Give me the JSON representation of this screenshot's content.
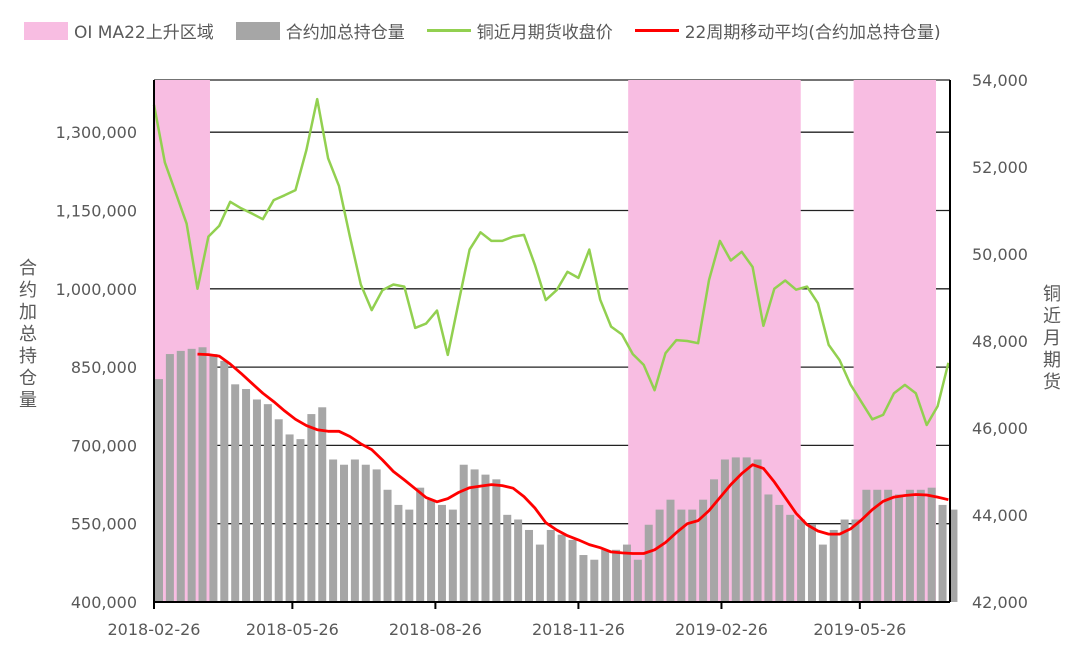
{
  "chart_data": {
    "type": "bar+line",
    "legend": [
      {
        "label": "OI MA22上升区域",
        "kind": "area",
        "color": "#f8bde2"
      },
      {
        "label": "合约加总持仓量",
        "kind": "bar",
        "color": "#a6a6a6"
      },
      {
        "label": "铜近月期货收盘价",
        "kind": "line",
        "color": "#92d050"
      },
      {
        "label": "22周期移动平均(合约加总持仓量)",
        "kind": "line",
        "color": "#ff0000"
      }
    ],
    "legend_position": "top",
    "y_left": {
      "label": "合约加总持仓量",
      "range": [
        400000,
        1400000
      ],
      "ticks": [
        "400,000",
        "550,000",
        "700,000",
        "850,000",
        "1,000,000",
        "1,150,000",
        "1,300,000"
      ],
      "tick_values": [
        400000,
        550000,
        700000,
        850000,
        1000000,
        1150000,
        1300000
      ]
    },
    "y_right": {
      "label": "铜近月期货",
      "range": [
        42000,
        54000
      ],
      "ticks": [
        "42,000",
        "44,000",
        "46,000",
        "48,000",
        "50,000",
        "52,000",
        "54,000"
      ],
      "tick_values": [
        42000,
        44000,
        46000,
        48000,
        50000,
        52000,
        54000
      ]
    },
    "x_axis": {
      "range": [
        "2018-02-26",
        "2019-07-23"
      ],
      "ticks": [
        "2018-02-26",
        "2018-05-26",
        "2018-08-26",
        "2018-11-26",
        "2019-02-26",
        "2019-05-26"
      ]
    },
    "grid": "horizontal",
    "shaded_regions": [
      [
        "2018-02-26",
        "2018-04-03"
      ],
      [
        "2018-12-28",
        "2019-04-18"
      ],
      [
        "2019-05-22",
        "2019-07-14"
      ]
    ],
    "dates": [
      "2018-02-26",
      "2018-03-05",
      "2018-03-12",
      "2018-03-19",
      "2018-03-26",
      "2018-04-02",
      "2018-04-09",
      "2018-04-16",
      "2018-04-23",
      "2018-04-30",
      "2018-05-07",
      "2018-05-14",
      "2018-05-21",
      "2018-05-28",
      "2018-06-04",
      "2018-06-11",
      "2018-06-18",
      "2018-06-25",
      "2018-07-02",
      "2018-07-09",
      "2018-07-16",
      "2018-07-23",
      "2018-07-30",
      "2018-08-06",
      "2018-08-13",
      "2018-08-20",
      "2018-08-27",
      "2018-09-03",
      "2018-09-10",
      "2018-09-17",
      "2018-09-24",
      "2018-10-01",
      "2018-10-08",
      "2018-10-15",
      "2018-10-22",
      "2018-10-29",
      "2018-11-05",
      "2018-11-12",
      "2018-11-19",
      "2018-11-26",
      "2018-12-03",
      "2018-12-10",
      "2018-12-17",
      "2018-12-24",
      "2018-12-31",
      "2019-01-07",
      "2019-01-14",
      "2019-01-21",
      "2019-01-28",
      "2019-02-04",
      "2019-02-11",
      "2019-02-18",
      "2019-02-25",
      "2019-03-04",
      "2019-03-11",
      "2019-03-18",
      "2019-03-25",
      "2019-04-01",
      "2019-04-08",
      "2019-04-15",
      "2019-04-22",
      "2019-04-29",
      "2019-05-06",
      "2019-05-13",
      "2019-05-20",
      "2019-05-27",
      "2019-06-03",
      "2019-06-10",
      "2019-06-17",
      "2019-06-24",
      "2019-07-01",
      "2019-07-08",
      "2019-07-15",
      "2019-07-22"
    ],
    "series": [
      {
        "name": "合约加总持仓量",
        "axis": "left",
        "type": "bar",
        "values": [
          827000,
          875000,
          881000,
          885000,
          888000,
          875000,
          862000,
          817000,
          808000,
          788000,
          779000,
          750000,
          721000,
          712000,
          760000,
          773000,
          673000,
          663000,
          673000,
          663000,
          654000,
          615000,
          586000,
          577000,
          619000,
          596000,
          586000,
          577000,
          663000,
          654000,
          644000,
          635000,
          567000,
          558000,
          538000,
          510000,
          538000,
          529000,
          519000,
          490000,
          481000,
          500000,
          500000,
          510000,
          481000,
          548000,
          577000,
          596000,
          577000,
          577000,
          596000,
          635000,
          673000,
          677000,
          677000,
          673000,
          606000,
          586000,
          567000,
          558000,
          548000,
          510000,
          538000,
          558000,
          558000,
          615000,
          615000,
          615000,
          606000,
          615000,
          615000,
          619000,
          586000,
          577000
        ]
      },
      {
        "name": "铜近月期货收盘价",
        "axis": "right",
        "type": "line",
        "values": [
          53430,
          52100,
          51400,
          50700,
          49200,
          50400,
          50650,
          51200,
          51050,
          50930,
          50800,
          51240,
          51350,
          51470,
          52390,
          53560,
          52200,
          51560,
          50400,
          49300,
          48710,
          49170,
          49300,
          49250,
          48300,
          48400,
          48700,
          47680,
          48900,
          50100,
          50500,
          50300,
          50300,
          50400,
          50440,
          49750,
          48940,
          49170,
          49590,
          49450,
          50100,
          48950,
          48330,
          48150,
          47700,
          47450,
          46870,
          47720,
          48020,
          48000,
          47950,
          49400,
          50300,
          49850,
          50050,
          49700,
          48350,
          49200,
          49390,
          49180,
          49250,
          48870,
          47910,
          47560,
          47000,
          46600,
          46200,
          46300,
          46800,
          46990,
          46800,
          46070,
          46500,
          47500
        ]
      },
      {
        "name": "22周期移动平均(合约加总持仓量)",
        "axis": "left",
        "type": "line",
        "values": [
          null,
          null,
          null,
          null,
          875000,
          874000,
          871000,
          856000,
          838000,
          819000,
          800000,
          784000,
          766000,
          750000,
          738000,
          730000,
          727000,
          727000,
          717000,
          703000,
          692000,
          672000,
          650000,
          634000,
          617000,
          600000,
          592000,
          598000,
          610000,
          619000,
          622000,
          625000,
          623000,
          618000,
          602000,
          580000,
          552000,
          538000,
          527000,
          519000,
          510000,
          504000,
          496000,
          494000,
          493000,
          493000,
          500000,
          514000,
          533000,
          550000,
          556000,
          575000,
          600000,
          625000,
          646000,
          663000,
          656000,
          630000,
          600000,
          570000,
          548000,
          536000,
          530000,
          530000,
          540000,
          557000,
          577000,
          593000,
          601000,
          604000,
          606000,
          605000,
          601000,
          596000
        ]
      }
    ]
  }
}
